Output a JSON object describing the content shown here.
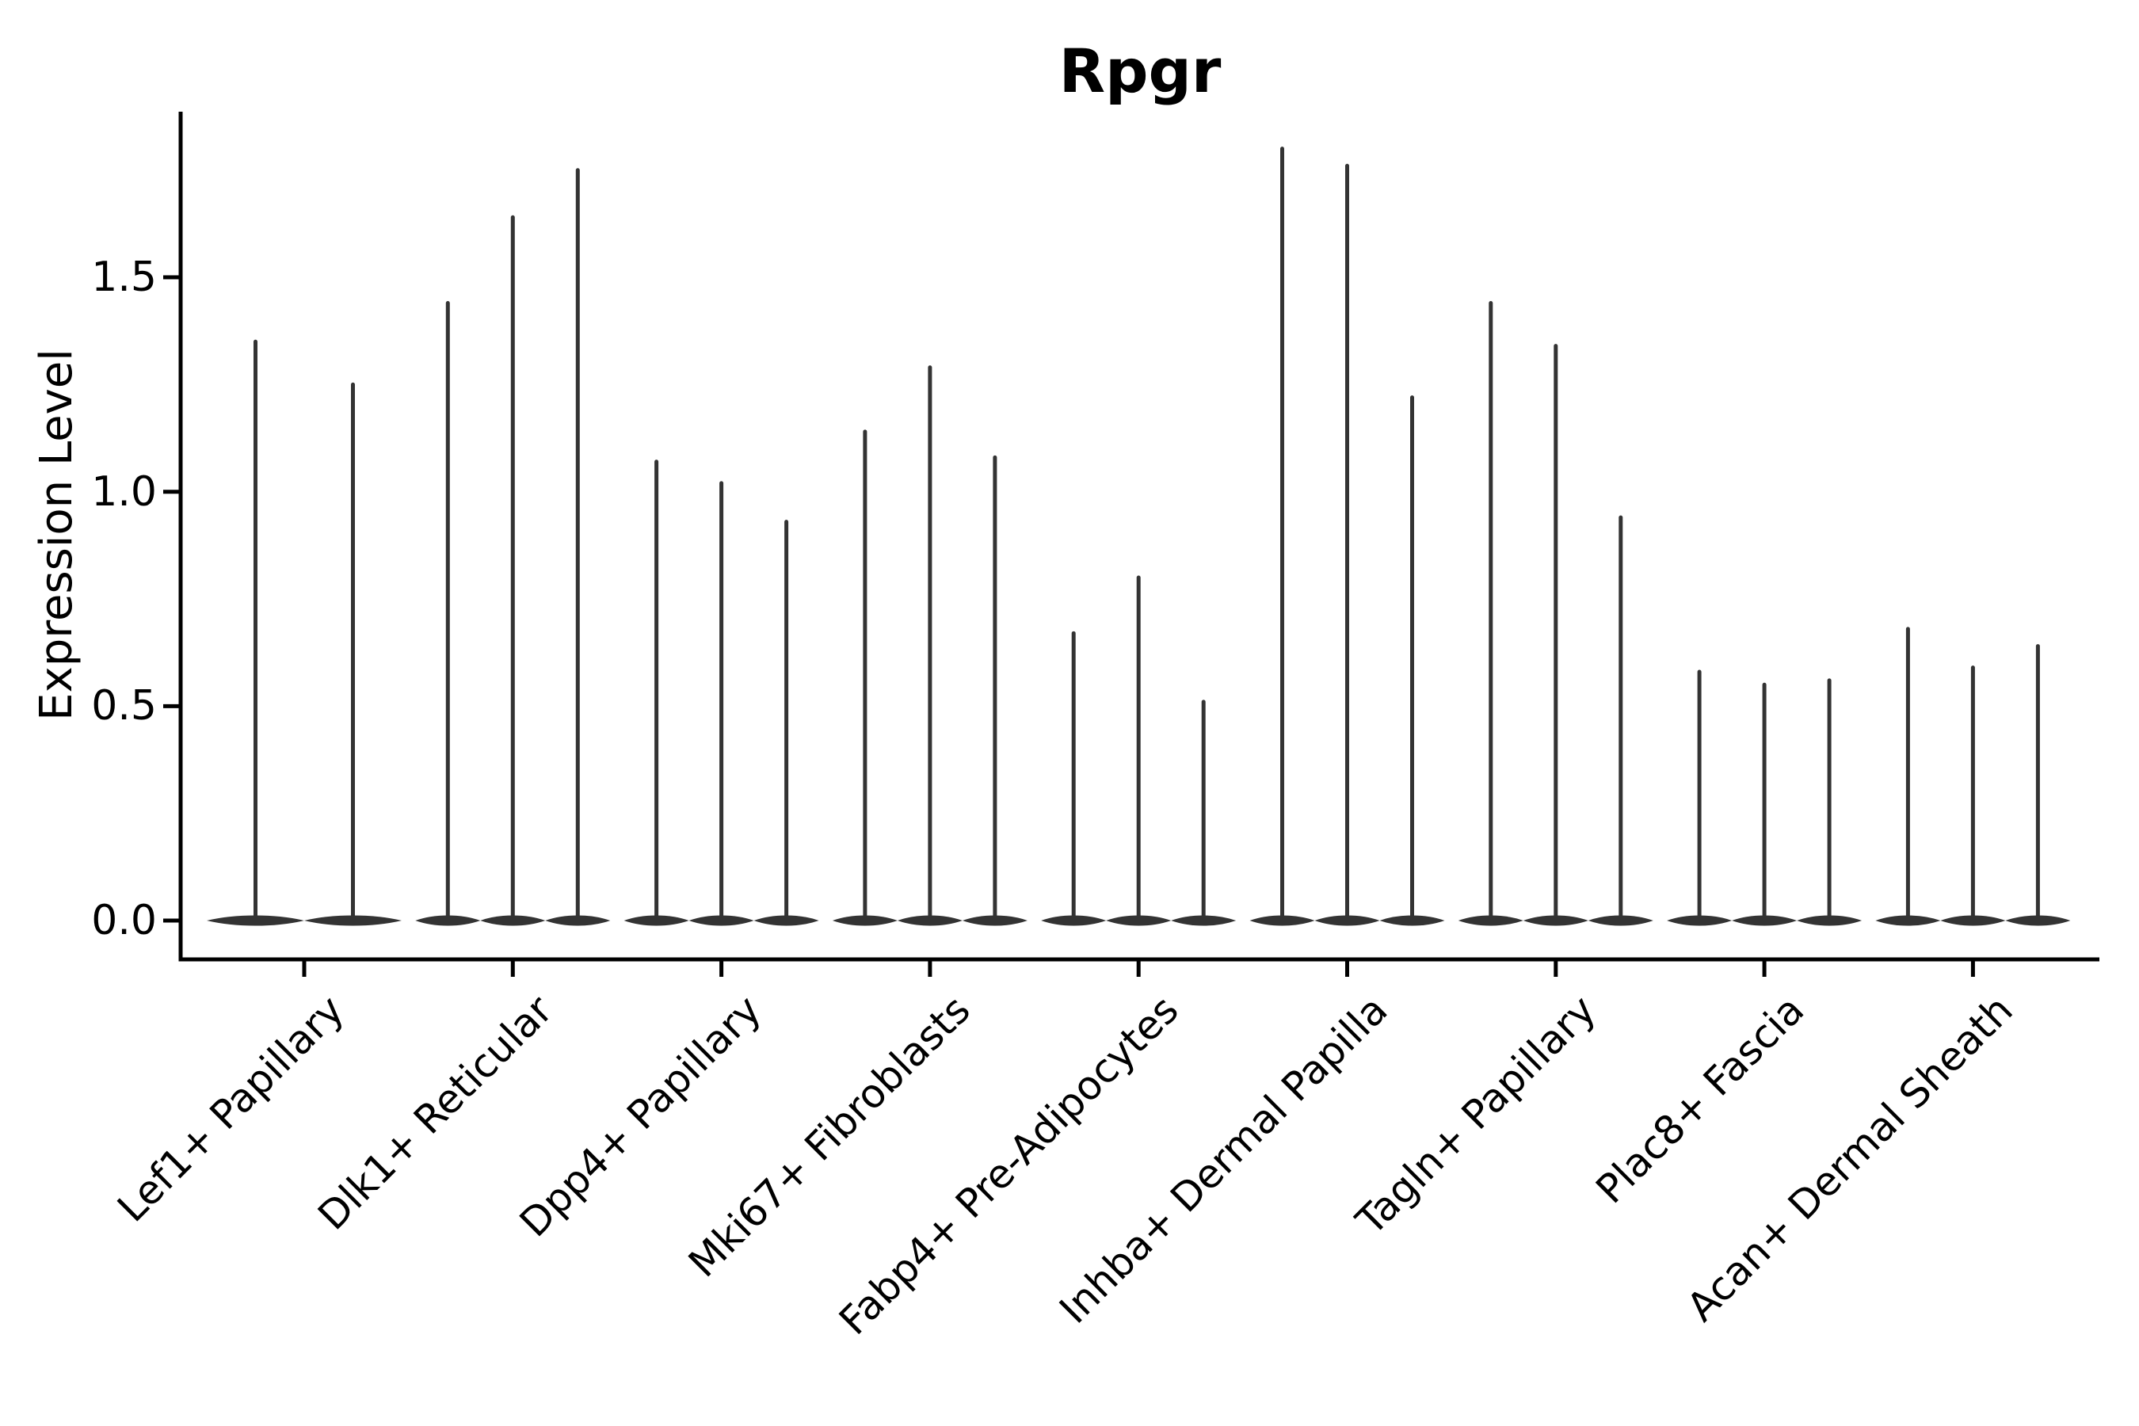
{
  "title": "Rpgr",
  "y_axis": {
    "label": "Expression Level",
    "tick_labels": [
      "0.0",
      "0.5",
      "1.0",
      "1.5"
    ]
  },
  "chart_data": {
    "type": "violin",
    "title": "Rpgr",
    "xlabel": "",
    "ylabel": "Expression Level",
    "ylim": [
      -0.09,
      1.89
    ],
    "yticks": [
      0.0,
      0.5,
      1.0,
      1.5
    ],
    "grid": false,
    "legend": "none",
    "description": "Stacked single-gene violin plot; each category shows thin violins (max expression spikes) with a flat dense mass at 0",
    "categories": [
      "Lef1+ Papillary",
      "Dlk1+ Reticular",
      "Dpp4+ Papillary",
      "Mki67+ Fibroblasts",
      "Fabp4+ Pre-Adipocytes",
      "Inhba+ Dermal Papilla",
      "Tagln+ Papillary",
      "Plac8+ Fascia",
      "Acan+ Dermal Sheath"
    ],
    "series": [
      {
        "category": "Lef1+ Papillary",
        "violin_max_values": [
          1.35,
          1.25
        ]
      },
      {
        "category": "Dlk1+ Reticular",
        "violin_max_values": [
          1.44,
          1.64,
          1.75
        ]
      },
      {
        "category": "Dpp4+ Papillary",
        "violin_max_values": [
          1.07,
          1.02,
          0.93
        ]
      },
      {
        "category": "Mki67+ Fibroblasts",
        "violin_max_values": [
          1.14,
          1.29,
          1.08
        ]
      },
      {
        "category": "Fabp4+ Pre-Adipocytes",
        "violin_max_values": [
          0.67,
          0.8,
          0.51
        ]
      },
      {
        "category": "Inhba+ Dermal Papilla",
        "violin_max_values": [
          1.8,
          1.76,
          1.22
        ]
      },
      {
        "category": "Tagln+ Papillary",
        "violin_max_values": [
          1.44,
          1.34,
          0.94
        ]
      },
      {
        "category": "Plac8+ Fascia",
        "violin_max_values": [
          0.58,
          0.55,
          0.56
        ]
      },
      {
        "category": "Acan+ Dermal Sheath",
        "violin_max_values": [
          0.68,
          0.59,
          0.64
        ]
      }
    ],
    "baseline_value": 0.0,
    "colors": {
      "violin": "#333333",
      "axis": "#000000",
      "background": "#ffffff"
    }
  }
}
